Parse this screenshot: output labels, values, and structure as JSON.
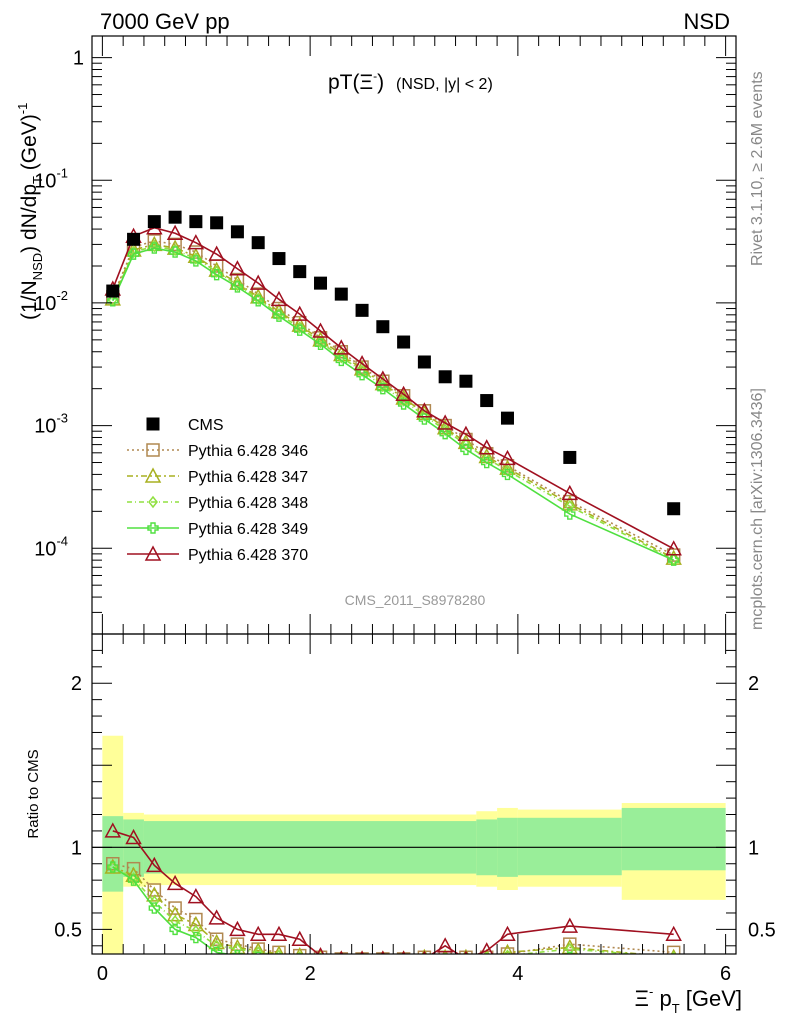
{
  "header": {
    "left": "7000 GeV pp",
    "right": "NSD",
    "side_rivet": "Rivet 3.1.10, ≥ 2.6M events",
    "side_mcplots": "mcplots.cern.ch [arXiv:1306.3436]"
  },
  "chart_data": {
    "type": "scatter",
    "title_main": "pT(Ξ",
    "title_sup": "-",
    "title_close": ")",
    "title_extra": "(NSD, |y| < 2)",
    "analysis_label": "CMS_2011_S8978280",
    "yscale": "log",
    "ylim": [
      2e-05,
      1.5
    ],
    "xlim": [
      -0.1,
      6.1
    ],
    "ylabel_parts": {
      "a": "(1/N",
      "a_sub": "NSD",
      "b": ") dN/dp",
      "b_sub": "T",
      "c": " (GeV)",
      "c_sup": "-1"
    },
    "yticks": [
      {
        "v": 1,
        "label": "1"
      },
      {
        "v": 0.1,
        "base": "10",
        "exp": "-1"
      },
      {
        "v": 0.01,
        "base": "10",
        "exp": "-2"
      },
      {
        "v": 0.001,
        "base": "10",
        "exp": "-3"
      },
      {
        "v": 0.0001,
        "base": "10",
        "exp": "-4"
      }
    ],
    "xticks": [
      {
        "v": 0,
        "label": "0"
      },
      {
        "v": 2,
        "label": "2"
      },
      {
        "v": 4,
        "label": "4"
      },
      {
        "v": 6,
        "label": "6"
      }
    ],
    "xlabel_parts": {
      "a": "Ξ",
      "a_sup": "-",
      "b": " p",
      "b_sub": "T",
      "c": " [GeV]"
    },
    "x": [
      0.1,
      0.3,
      0.5,
      0.7,
      0.9,
      1.1,
      1.3,
      1.5,
      1.7,
      1.9,
      2.1,
      2.3,
      2.5,
      2.7,
      2.9,
      3.1,
      3.3,
      3.5,
      3.7,
      3.9,
      4.5,
      5.5
    ],
    "data": {
      "name": "CMS",
      "values": [
        0.0125,
        0.033,
        0.046,
        0.05,
        0.046,
        0.045,
        0.038,
        0.031,
        0.023,
        0.018,
        0.0145,
        0.0118,
        0.0087,
        0.0064,
        0.0048,
        0.0033,
        0.0025,
        0.0023,
        0.0016,
        0.00115,
        0.00055,
        0.00021
      ]
    },
    "series": [
      {
        "name": "Pythia 6.428 346",
        "color": "#b08850",
        "marker": "square",
        "dash": "2,3",
        "values": [
          0.0112,
          0.0285,
          0.032,
          0.03,
          0.026,
          0.02,
          0.0155,
          0.0118,
          0.009,
          0.0069,
          0.0052,
          0.004,
          0.003,
          0.0023,
          0.00175,
          0.00132,
          0.001,
          0.00077,
          0.00059,
          0.00047,
          0.00024,
          8.8e-05
        ]
      },
      {
        "name": "Pythia 6.428 347",
        "color": "#a8b020",
        "marker": "triangle",
        "dash": "6,3,2,3",
        "values": [
          0.0108,
          0.027,
          0.03,
          0.028,
          0.024,
          0.0185,
          0.0145,
          0.0112,
          0.0085,
          0.0066,
          0.005,
          0.0038,
          0.0029,
          0.0022,
          0.00168,
          0.00126,
          0.00096,
          0.00073,
          0.00056,
          0.00045,
          0.00023,
          8.3e-05
        ]
      },
      {
        "name": "Pythia 6.428 348",
        "color": "#90e040",
        "marker": "diamond",
        "dash": "5,3,1,3",
        "values": [
          0.0106,
          0.026,
          0.029,
          0.027,
          0.023,
          0.018,
          0.014,
          0.0108,
          0.0081,
          0.0063,
          0.0048,
          0.0036,
          0.0028,
          0.0021,
          0.0016,
          0.00121,
          0.00092,
          0.0007,
          0.00054,
          0.00043,
          0.00022,
          8.1e-05
        ]
      },
      {
        "name": "Pythia 6.428 349",
        "color": "#50e040",
        "marker": "cross",
        "dash": "",
        "values": [
          0.0104,
          0.025,
          0.028,
          0.026,
          0.022,
          0.017,
          0.0135,
          0.0104,
          0.0078,
          0.006,
          0.0046,
          0.0034,
          0.0026,
          0.002,
          0.0015,
          0.00113,
          0.00086,
          0.00064,
          0.0005,
          0.0004,
          0.00019,
          8e-05
        ]
      },
      {
        "name": "Pythia 6.428 370",
        "color": "#a01020",
        "marker": "triangle",
        "dash": "",
        "values": [
          0.013,
          0.035,
          0.041,
          0.037,
          0.031,
          0.025,
          0.019,
          0.0145,
          0.0107,
          0.0081,
          0.0059,
          0.0043,
          0.0032,
          0.0024,
          0.0018,
          0.00132,
          0.00105,
          0.00085,
          0.00066,
          0.00054,
          0.00028,
          9.9e-05
        ]
      }
    ],
    "ratio": {
      "ylabel": "Ratio to CMS",
      "ylim": [
        0.35,
        2.3
      ],
      "yticks": [
        {
          "v": 0.5,
          "label": "0.5"
        },
        {
          "v": 1,
          "label": "1"
        },
        {
          "v": 2,
          "label": "2"
        }
      ],
      "bins": [
        {
          "x0": 0.0,
          "x1": 0.2,
          "g": [
            0.73,
            1.19
          ],
          "y": [
            0.34,
            1.68
          ]
        },
        {
          "x0": 0.2,
          "x1": 0.4,
          "g": [
            0.82,
            1.17
          ],
          "y": [
            0.76,
            1.21
          ]
        },
        {
          "x0": 0.4,
          "x1": 3.6,
          "g": [
            0.84,
            1.16
          ],
          "y": [
            0.77,
            1.2
          ]
        },
        {
          "x0": 3.6,
          "x1": 3.8,
          "g": [
            0.83,
            1.17
          ],
          "y": [
            0.76,
            1.22
          ]
        },
        {
          "x0": 3.8,
          "x1": 4.0,
          "g": [
            0.82,
            1.18
          ],
          "y": [
            0.74,
            1.24
          ]
        },
        {
          "x0": 4.0,
          "x1": 5.0,
          "g": [
            0.83,
            1.18
          ],
          "y": [
            0.76,
            1.23
          ]
        },
        {
          "x0": 5.0,
          "x1": 6.0,
          "g": [
            0.86,
            1.24
          ],
          "y": [
            0.68,
            1.27
          ]
        }
      ],
      "series_x": [
        0.1,
        0.3,
        0.5,
        0.7,
        0.9,
        1.1,
        1.3,
        1.5,
        1.7,
        1.9,
        2.1,
        2.3,
        2.5,
        2.7,
        2.9,
        3.1,
        3.3,
        3.5,
        3.7,
        3.9,
        4.5,
        5.5
      ],
      "series_values": [
        [
          0.9,
          0.87,
          0.74,
          0.63,
          0.56,
          0.44,
          0.41,
          0.38,
          0.36,
          0.34,
          0.33,
          0.32,
          0.32,
          0.32,
          0.32,
          0.33,
          0.33,
          0.33,
          0.33,
          0.35,
          0.41,
          0.36
        ],
        [
          0.88,
          0.83,
          0.71,
          0.59,
          0.53,
          0.42,
          0.39,
          0.37,
          0.35,
          0.34,
          0.33,
          0.32,
          0.32,
          0.32,
          0.32,
          0.33,
          0.33,
          0.33,
          0.33,
          0.36,
          0.39,
          0.33
        ],
        [
          0.88,
          0.81,
          0.67,
          0.55,
          0.49,
          0.4,
          0.38,
          0.36,
          0.34,
          0.33,
          0.32,
          0.32,
          0.32,
          0.32,
          0.32,
          0.32,
          0.33,
          0.33,
          0.33,
          0.34,
          0.38,
          0.33
        ],
        [
          0.88,
          0.8,
          0.63,
          0.5,
          0.45,
          0.36,
          0.34,
          0.33,
          0.32,
          0.32,
          0.31,
          0.31,
          0.3,
          0.3,
          0.3,
          0.3,
          0.3,
          0.3,
          0.3,
          0.31,
          0.33,
          0.3
        ],
        [
          1.1,
          1.06,
          0.89,
          0.78,
          0.7,
          0.57,
          0.5,
          0.47,
          0.47,
          0.44,
          0.34,
          0.32,
          0.32,
          0.32,
          0.32,
          0.32,
          0.4,
          0.32,
          0.37,
          0.47,
          0.52,
          0.47
        ]
      ]
    }
  }
}
